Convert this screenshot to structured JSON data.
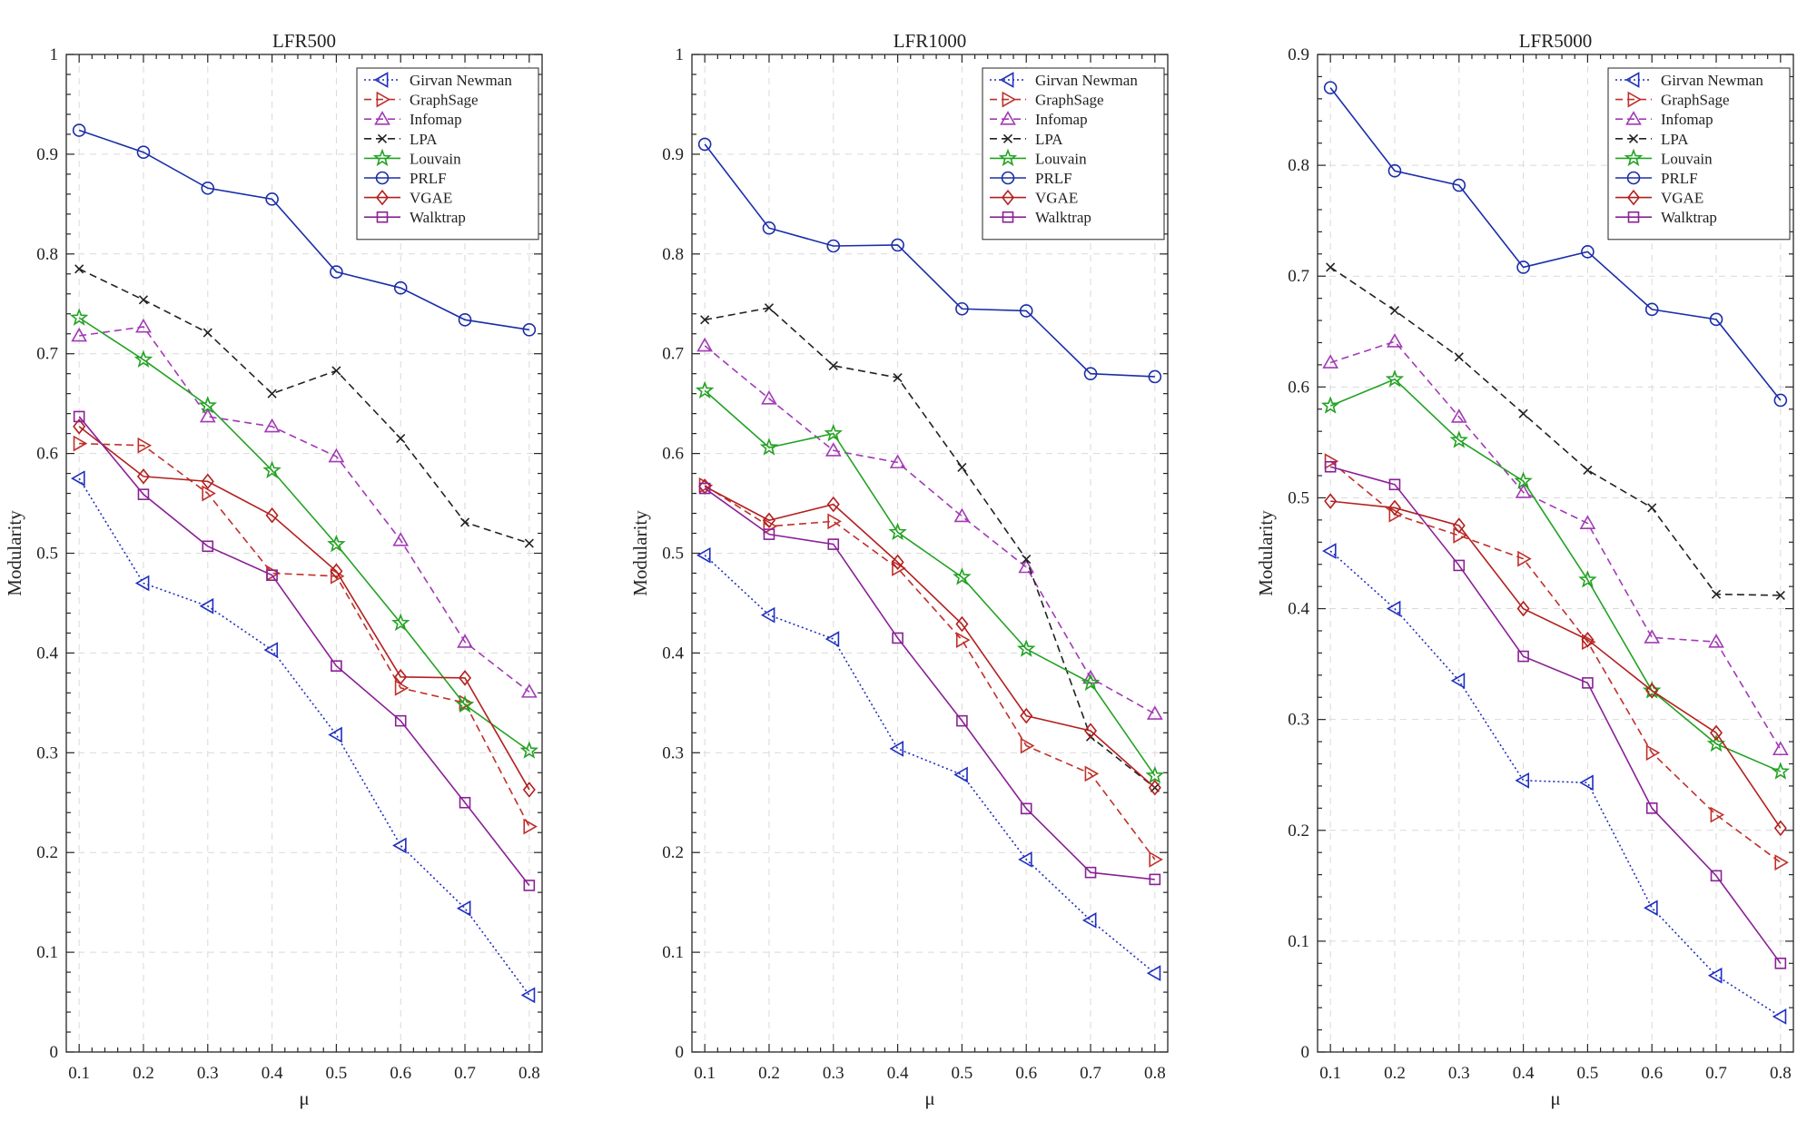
{
  "chart_data": [
    {
      "type": "line",
      "title": "LFR500",
      "xlabel": "μ",
      "ylabel": "Modularity",
      "x": [
        0.1,
        0.2,
        0.3,
        0.4,
        0.5,
        0.6,
        0.7,
        0.8
      ],
      "xticks": [
        "0.1",
        "0.2",
        "0.3",
        "0.4",
        "0.5",
        "0.6",
        "0.7",
        "0.8"
      ],
      "ylim": [
        0,
        1
      ],
      "yticks": [
        "0",
        "0.1",
        "0.2",
        "0.3",
        "0.4",
        "0.5",
        "0.6",
        "0.7",
        "0.8",
        "0.9",
        "1"
      ],
      "grid": true,
      "legend_position": "top-right",
      "series": [
        {
          "name": "Girvan Newman",
          "values": [
            0.575,
            0.47,
            0.447,
            0.403,
            0.318,
            0.207,
            0.144,
            0.057
          ]
        },
        {
          "name": "GraphSage",
          "values": [
            0.61,
            0.608,
            0.56,
            0.48,
            0.477,
            0.365,
            0.35,
            0.226
          ]
        },
        {
          "name": "Infomap",
          "values": [
            0.718,
            0.727,
            0.637,
            0.627,
            0.597,
            0.513,
            0.411,
            0.361
          ]
        },
        {
          "name": "LPA",
          "values": [
            0.785,
            0.754,
            0.721,
            0.66,
            0.683,
            0.615,
            0.531,
            0.51
          ]
        },
        {
          "name": "Louvain",
          "values": [
            0.736,
            0.694,
            0.648,
            0.583,
            0.509,
            0.43,
            0.348,
            0.302
          ]
        },
        {
          "name": "PRLF",
          "values": [
            0.924,
            0.902,
            0.866,
            0.855,
            0.782,
            0.766,
            0.734,
            0.724
          ]
        },
        {
          "name": "VGAE",
          "values": [
            0.627,
            0.577,
            0.572,
            0.538,
            0.482,
            0.376,
            0.375,
            0.263
          ]
        },
        {
          "name": "Walktrap",
          "values": [
            0.637,
            0.559,
            0.507,
            0.478,
            0.387,
            0.332,
            0.25,
            0.167
          ]
        }
      ]
    },
    {
      "type": "line",
      "title": "LFR1000",
      "xlabel": "μ",
      "ylabel": "Modularity",
      "x": [
        0.1,
        0.2,
        0.3,
        0.4,
        0.5,
        0.6,
        0.7,
        0.8
      ],
      "xticks": [
        "0.1",
        "0.2",
        "0.3",
        "0.4",
        "0.5",
        "0.6",
        "0.7",
        "0.8"
      ],
      "ylim": [
        0,
        1
      ],
      "yticks": [
        "0",
        "0.1",
        "0.2",
        "0.3",
        "0.4",
        "0.5",
        "0.6",
        "0.7",
        "0.8",
        "0.9",
        "1"
      ],
      "grid": true,
      "legend_position": "top-right",
      "series": [
        {
          "name": "Girvan Newman",
          "values": [
            0.498,
            0.438,
            0.414,
            0.304,
            0.278,
            0.193,
            0.132,
            0.079
          ]
        },
        {
          "name": "GraphSage",
          "values": [
            0.568,
            0.527,
            0.532,
            0.485,
            0.413,
            0.307,
            0.279,
            0.193
          ]
        },
        {
          "name": "Infomap",
          "values": [
            0.708,
            0.655,
            0.603,
            0.591,
            0.537,
            0.486,
            0.375,
            0.339
          ]
        },
        {
          "name": "LPA",
          "values": [
            0.734,
            0.746,
            0.688,
            0.676,
            0.586,
            0.494,
            0.316,
            0.265
          ]
        },
        {
          "name": "Louvain",
          "values": [
            0.663,
            0.606,
            0.62,
            0.521,
            0.476,
            0.404,
            0.37,
            0.277
          ]
        },
        {
          "name": "PRLF",
          "values": [
            0.91,
            0.826,
            0.808,
            0.809,
            0.745,
            0.743,
            0.68,
            0.677
          ]
        },
        {
          "name": "VGAE",
          "values": [
            0.567,
            0.533,
            0.549,
            0.491,
            0.429,
            0.337,
            0.322,
            0.265
          ]
        },
        {
          "name": "Walktrap",
          "values": [
            0.565,
            0.519,
            0.509,
            0.415,
            0.332,
            0.244,
            0.18,
            0.173
          ]
        }
      ]
    },
    {
      "type": "line",
      "title": "LFR5000",
      "xlabel": "μ",
      "ylabel": "Modularity",
      "x": [
        0.1,
        0.2,
        0.3,
        0.4,
        0.5,
        0.6,
        0.7,
        0.8
      ],
      "xticks": [
        "0.1",
        "0.2",
        "0.3",
        "0.4",
        "0.5",
        "0.6",
        "0.7",
        "0.8"
      ],
      "ylim": [
        0,
        0.9
      ],
      "yticks": [
        "0",
        "0.1",
        "0.2",
        "0.3",
        "0.4",
        "0.5",
        "0.6",
        "0.7",
        "0.8",
        "0.9"
      ],
      "grid": true,
      "legend_position": "top-right",
      "series": [
        {
          "name": "Girvan Newman",
          "values": [
            0.452,
            0.4,
            0.335,
            0.245,
            0.243,
            0.13,
            0.069,
            0.032
          ]
        },
        {
          "name": "GraphSage",
          "values": [
            0.533,
            0.485,
            0.466,
            0.445,
            0.37,
            0.27,
            0.214,
            0.171
          ]
        },
        {
          "name": "Infomap",
          "values": [
            0.622,
            0.641,
            0.573,
            0.505,
            0.477,
            0.374,
            0.37,
            0.273
          ]
        },
        {
          "name": "LPA",
          "values": [
            0.708,
            0.669,
            0.627,
            0.576,
            0.525,
            0.491,
            0.413,
            0.412
          ]
        },
        {
          "name": "Louvain",
          "values": [
            0.583,
            0.607,
            0.552,
            0.515,
            0.426,
            0.326,
            0.278,
            0.253
          ]
        },
        {
          "name": "PRLF",
          "values": [
            0.87,
            0.795,
            0.782,
            0.708,
            0.722,
            0.67,
            0.661,
            0.588
          ]
        },
        {
          "name": "VGAE",
          "values": [
            0.497,
            0.491,
            0.475,
            0.4,
            0.372,
            0.326,
            0.288,
            0.202
          ]
        },
        {
          "name": "Walktrap",
          "values": [
            0.528,
            0.512,
            0.439,
            0.357,
            0.333,
            0.22,
            0.159,
            0.08
          ]
        }
      ]
    }
  ],
  "series_styles": {
    "Girvan Newman": {
      "color": "#1f2fbf",
      "dash": "dotted",
      "marker": "triangle-left"
    },
    "GraphSage": {
      "color": "#c0302a",
      "dash": "dashed",
      "marker": "triangle-right"
    },
    "Infomap": {
      "color": "#a23ab5",
      "dash": "dashed",
      "marker": "triangle-up"
    },
    "LPA": {
      "color": "#222222",
      "dash": "dashed",
      "marker": "x"
    },
    "Louvain": {
      "color": "#23a223",
      "dash": "solid",
      "marker": "star"
    },
    "PRLF": {
      "color": "#1a2ea8",
      "dash": "solid",
      "marker": "circle"
    },
    "VGAE": {
      "color": "#b3201f",
      "dash": "solid",
      "marker": "diamond"
    },
    "Walktrap": {
      "color": "#8a2096",
      "dash": "solid",
      "marker": "square"
    }
  }
}
